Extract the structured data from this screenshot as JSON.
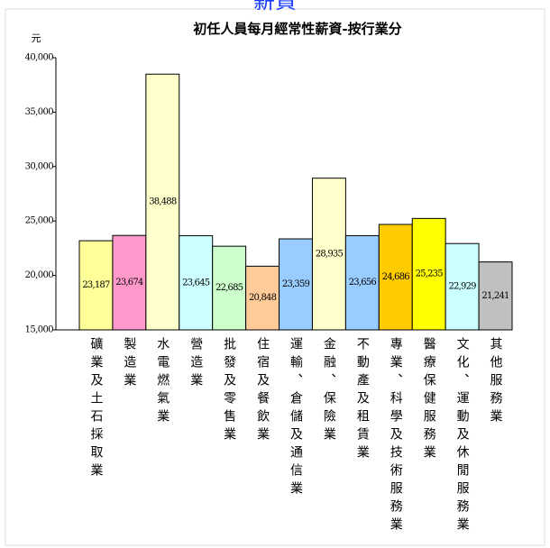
{
  "page_heading": "薪資",
  "chart_data": {
    "type": "bar",
    "title": "初任人員每月經常性薪資-按行業分",
    "y_label": "元",
    "categories": [
      "礦業及土石採取業",
      "製造業",
      "水電燃氣業",
      "營造業",
      "批發及零售業",
      "住宿及餐飲業",
      "運輸、倉儲及通信業",
      "金融、保險業",
      "不動產及租賃業",
      "專業、科學及技術服務業",
      "醫療保健服務業",
      "文化、運動及休閒服務業",
      "其他服務業"
    ],
    "values": [
      23187,
      23674,
      38488,
      23645,
      22685,
      20848,
      23359,
      28935,
      23656,
      24686,
      25235,
      22929,
      21241
    ],
    "value_labels": [
      "23,187",
      "23,674",
      "38,488",
      "23,645",
      "22,685",
      "20,848",
      "23,359",
      "28,935",
      "23,656",
      "24,686",
      "25,235",
      "22,929",
      "21,241"
    ],
    "colors": [
      "#ffff99",
      "#ff99cc",
      "#ffffcc",
      "#ccffff",
      "#ccffcc",
      "#ffcc99",
      "#99ccff",
      "#ffffcc",
      "#99ccff",
      "#ffcc00",
      "#ffff00",
      "#ccffff",
      "#c0c0c0"
    ],
    "ylim": [
      15000,
      40000
    ],
    "yticks": [
      {
        "value": 15000,
        "label": "15,000"
      },
      {
        "value": 20000,
        "label": "20,000"
      },
      {
        "value": 25000,
        "label": "25,000"
      },
      {
        "value": 30000,
        "label": "30,000"
      },
      {
        "value": 35000,
        "label": "35,000"
      },
      {
        "value": 40000,
        "label": "40,000"
      }
    ],
    "grid": false
  }
}
